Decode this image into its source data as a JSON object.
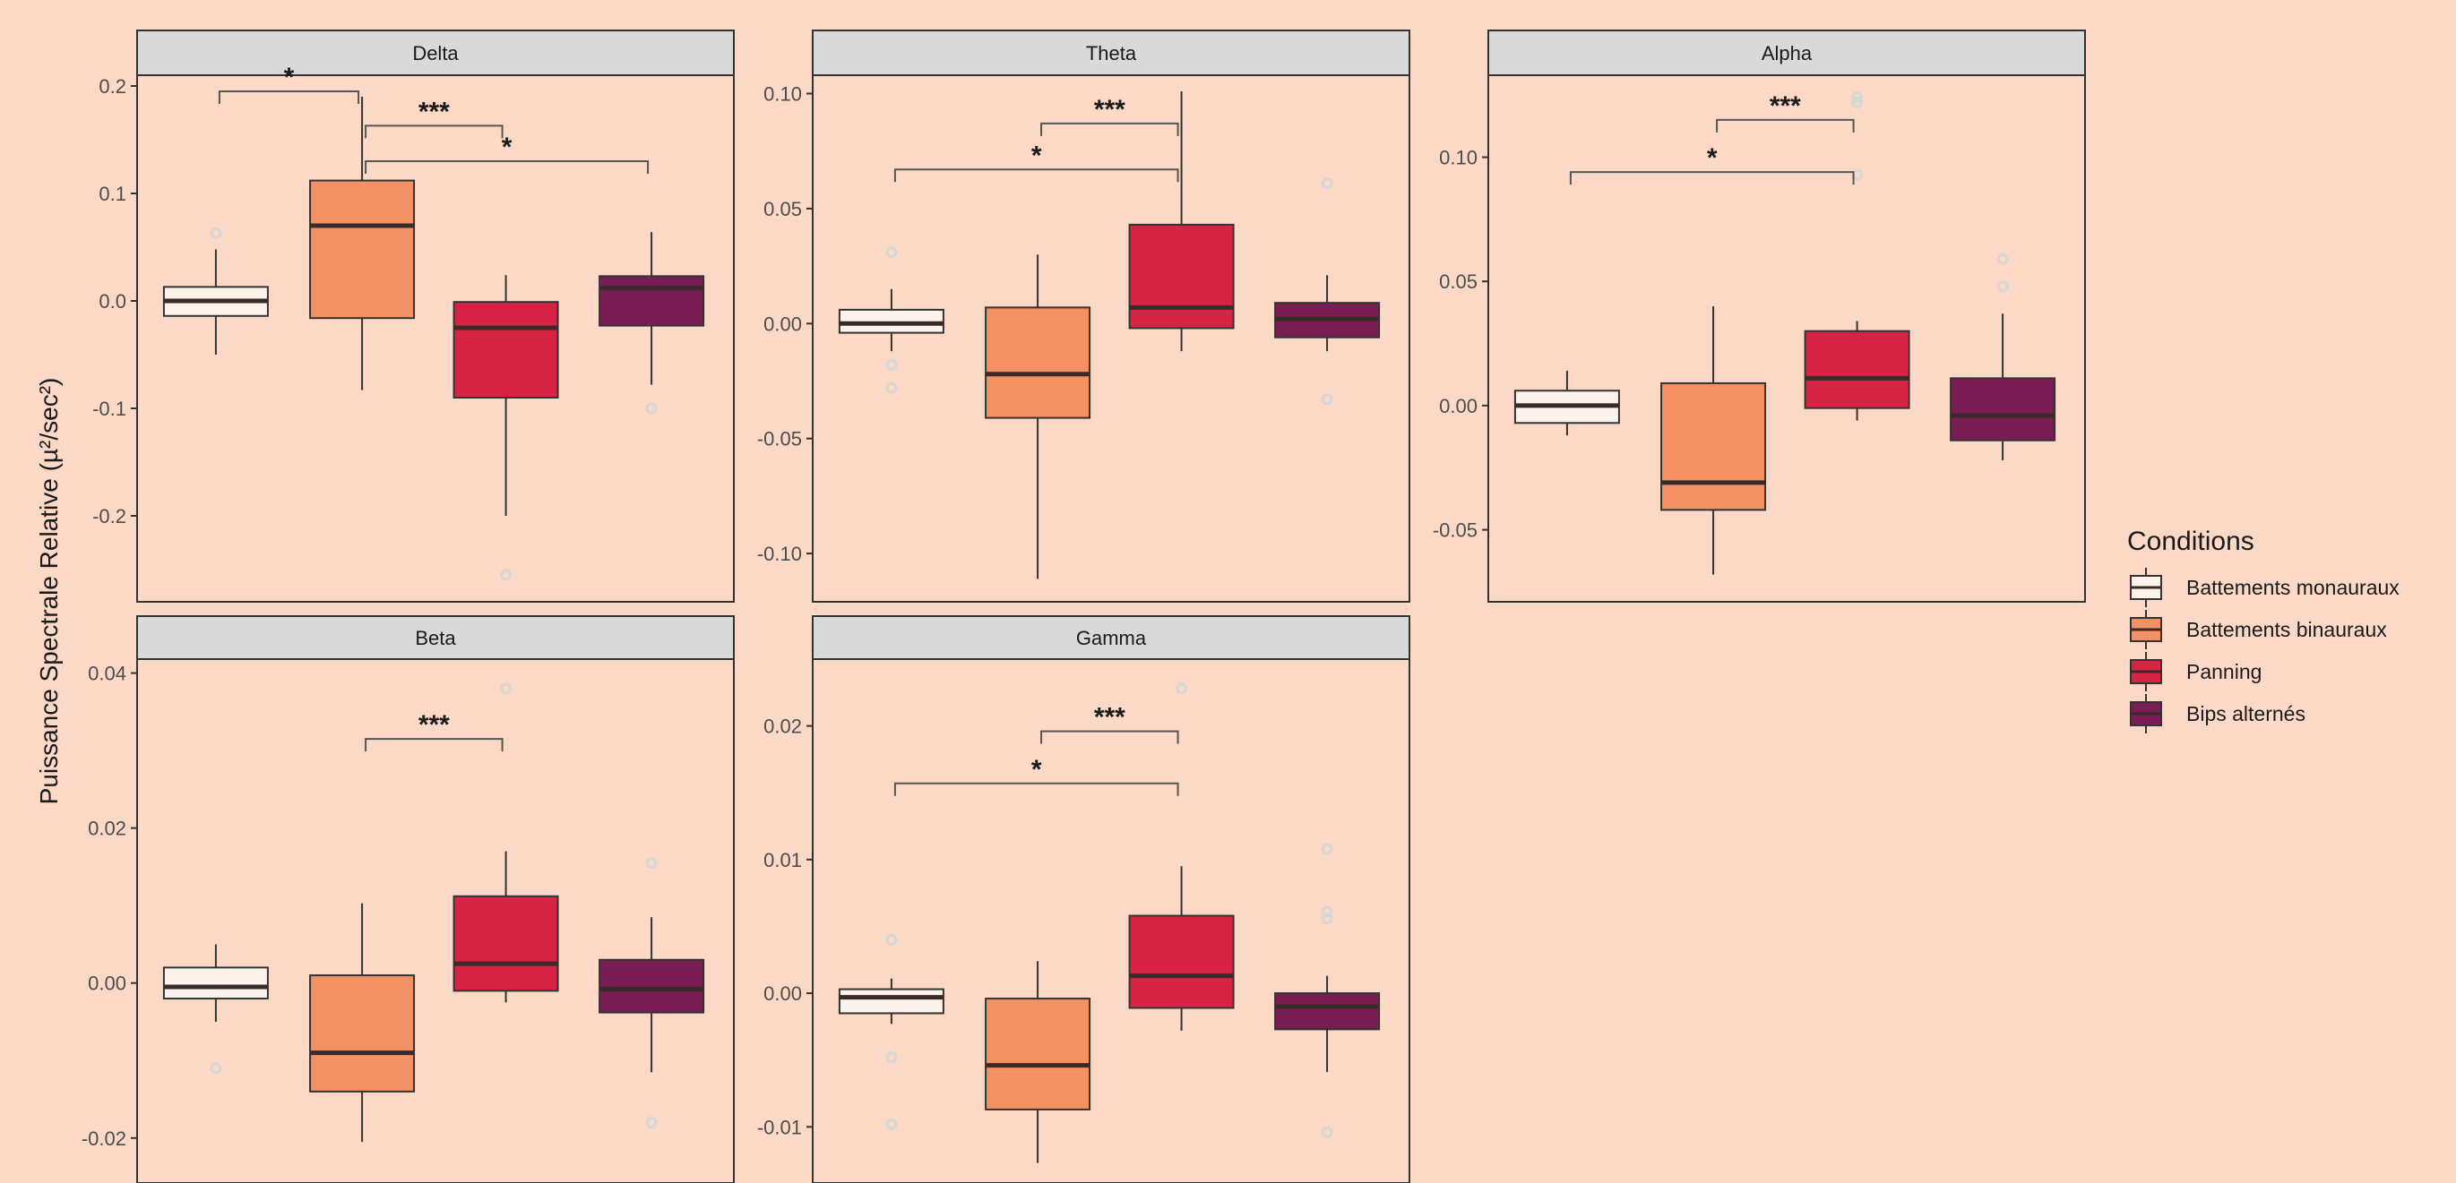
{
  "colors": {
    "background": "#FCD9C7",
    "strip": "#D9D9D9",
    "panel_border": "#333333",
    "outlier": "#D6D6D6",
    "median": "#3a2a2a"
  },
  "chart_data": {
    "type": "box",
    "ylabel": "Puissance Spectrale Relative (µ²/sec²)",
    "xlabel": "",
    "grid": false,
    "legend": {
      "title": "Conditions",
      "position": "right",
      "entries": [
        {
          "label": "Battements monauraux",
          "color": "#FDF3EA"
        },
        {
          "label": "Battements binauraux",
          "color": "#F39064"
        },
        {
          "label": "Panning",
          "color": "#D72444"
        },
        {
          "label": "Bips alternés",
          "color": "#7A1D54"
        }
      ]
    },
    "panels": [
      {
        "title": "Delta",
        "ylim": [
          -0.28,
          0.21
        ],
        "yticks": [
          -0.2,
          -0.1,
          0.0,
          0.1,
          0.2
        ],
        "ytick_labels": [
          "-0.2",
          "-0.1",
          "0.0",
          "0.1",
          "0.2"
        ],
        "boxes": [
          {
            "condition": "Battements monauraux",
            "q1": -0.014,
            "median": 0.0,
            "q3": 0.013,
            "whisker_low": -0.05,
            "whisker_high": 0.048,
            "outliers": [
              0.063
            ]
          },
          {
            "condition": "Battements binauraux",
            "q1": -0.016,
            "median": 0.07,
            "q3": 0.112,
            "whisker_low": -0.083,
            "whisker_high": 0.19,
            "outliers": []
          },
          {
            "condition": "Panning",
            "q1": -0.09,
            "median": -0.025,
            "q3": -0.001,
            "whisker_low": -0.2,
            "whisker_high": 0.024,
            "outliers": [
              -0.255
            ]
          },
          {
            "condition": "Bips alternés",
            "q1": -0.023,
            "median": 0.012,
            "q3": 0.023,
            "whisker_low": -0.078,
            "whisker_high": 0.064,
            "outliers": [
              -0.1
            ]
          }
        ],
        "signif": [
          {
            "from": 1,
            "to": 2,
            "y": 0.195,
            "label": "*"
          },
          {
            "from": 2,
            "to": 3,
            "y": 0.163,
            "label": "***"
          },
          {
            "from": 2,
            "to": 4,
            "y": 0.13,
            "label": "*"
          }
        ]
      },
      {
        "title": "Theta",
        "ylim": [
          -0.121,
          0.108
        ],
        "yticks": [
          -0.1,
          -0.05,
          0.0,
          0.05,
          0.1
        ],
        "ytick_labels": [
          "-0.10",
          "-0.05",
          "0.00",
          "0.05",
          "0.10"
        ],
        "boxes": [
          {
            "condition": "Battements monauraux",
            "q1": -0.004,
            "median": 0.0,
            "q3": 0.006,
            "whisker_low": -0.012,
            "whisker_high": 0.015,
            "outliers": [
              0.031,
              -0.018,
              -0.028
            ]
          },
          {
            "condition": "Battements binauraux",
            "q1": -0.041,
            "median": -0.022,
            "q3": 0.007,
            "whisker_low": -0.111,
            "whisker_high": 0.03,
            "outliers": []
          },
          {
            "condition": "Panning",
            "q1": -0.002,
            "median": 0.007,
            "q3": 0.043,
            "whisker_low": -0.012,
            "whisker_high": 0.101,
            "outliers": []
          },
          {
            "condition": "Bips alternés",
            "q1": -0.006,
            "median": 0.002,
            "q3": 0.009,
            "whisker_low": -0.012,
            "whisker_high": 0.021,
            "outliers": [
              0.061,
              -0.033
            ]
          }
        ],
        "signif": [
          {
            "from": 1,
            "to": 3,
            "y": 0.067,
            "label": "*"
          },
          {
            "from": 2,
            "to": 3,
            "y": 0.087,
            "label": "***"
          }
        ]
      },
      {
        "title": "Alpha",
        "ylim": [
          -0.079,
          0.133
        ],
        "yticks": [
          -0.05,
          0.0,
          0.05,
          0.1
        ],
        "ytick_labels": [
          "-0.05",
          "0.00",
          "0.05",
          "0.10"
        ],
        "boxes": [
          {
            "condition": "Battements monauraux",
            "q1": -0.007,
            "median": 0.0,
            "q3": 0.006,
            "whisker_low": -0.012,
            "whisker_high": 0.014,
            "outliers": []
          },
          {
            "condition": "Battements binauraux",
            "q1": -0.042,
            "median": -0.031,
            "q3": 0.009,
            "whisker_low": -0.068,
            "whisker_high": 0.04,
            "outliers": []
          },
          {
            "condition": "Panning",
            "q1": -0.001,
            "median": 0.011,
            "q3": 0.03,
            "whisker_low": -0.006,
            "whisker_high": 0.034,
            "outliers": [
              0.124,
              0.122,
              0.093
            ]
          },
          {
            "condition": "Bips alternés",
            "q1": -0.014,
            "median": -0.004,
            "q3": 0.011,
            "whisker_low": -0.022,
            "whisker_high": 0.037,
            "outliers": [
              0.059,
              0.048
            ]
          }
        ],
        "signif": [
          {
            "from": 1,
            "to": 3,
            "y": 0.094,
            "label": "*"
          },
          {
            "from": 2,
            "to": 3,
            "y": 0.115,
            "label": "***"
          }
        ]
      },
      {
        "title": "Beta",
        "ylim": [
          -0.0258,
          0.0418
        ],
        "yticks": [
          -0.02,
          0.0,
          0.02,
          0.04
        ],
        "ytick_labels": [
          "-0.02",
          "0.00",
          "0.02",
          "0.04"
        ],
        "boxes": [
          {
            "condition": "Battements monauraux",
            "q1": -0.002,
            "median": -0.0005,
            "q3": 0.002,
            "whisker_low": -0.005,
            "whisker_high": 0.005,
            "outliers": [
              -0.011
            ]
          },
          {
            "condition": "Battements binauraux",
            "q1": -0.014,
            "median": -0.009,
            "q3": 0.001,
            "whisker_low": -0.0205,
            "whisker_high": 0.0103,
            "outliers": []
          },
          {
            "condition": "Panning",
            "q1": -0.001,
            "median": 0.0025,
            "q3": 0.0112,
            "whisker_low": -0.0025,
            "whisker_high": 0.017,
            "outliers": [
              0.038
            ]
          },
          {
            "condition": "Bips alternés",
            "q1": -0.0038,
            "median": -0.0008,
            "q3": 0.003,
            "whisker_low": -0.0115,
            "whisker_high": 0.0085,
            "outliers": [
              0.0155,
              -0.018
            ]
          }
        ],
        "signif": [
          {
            "from": 2,
            "to": 3,
            "y": 0.0315,
            "label": "***"
          }
        ]
      },
      {
        "title": "Gamma",
        "ylim": [
          -0.0142,
          0.025
        ],
        "yticks": [
          -0.01,
          0.0,
          0.01,
          0.02
        ],
        "ytick_labels": [
          "-0.01",
          "0.00",
          "0.01",
          "0.02"
        ],
        "boxes": [
          {
            "condition": "Battements monauraux",
            "q1": -0.0015,
            "median": -0.0003,
            "q3": 0.0003,
            "whisker_low": -0.0023,
            "whisker_high": 0.0011,
            "outliers": [
              0.004,
              -0.0048,
              -0.0098
            ]
          },
          {
            "condition": "Battements binauraux",
            "q1": -0.0087,
            "median": -0.0054,
            "q3": -0.0004,
            "whisker_low": -0.0127,
            "whisker_high": 0.0024,
            "outliers": []
          },
          {
            "condition": "Panning",
            "q1": -0.0011,
            "median": 0.0013,
            "q3": 0.0058,
            "whisker_low": -0.0028,
            "whisker_high": 0.0095,
            "outliers": [
              0.0228
            ]
          },
          {
            "condition": "Bips alternés",
            "q1": -0.0027,
            "median": -0.001,
            "q3": 0.0,
            "whisker_low": -0.0059,
            "whisker_high": 0.0013,
            "outliers": [
              0.0108,
              0.0061,
              0.0056,
              -0.0104
            ]
          }
        ],
        "signif": [
          {
            "from": 1,
            "to": 3,
            "y": 0.0157,
            "label": "*"
          },
          {
            "from": 2,
            "to": 3,
            "y": 0.0196,
            "label": "***"
          }
        ]
      }
    ]
  }
}
